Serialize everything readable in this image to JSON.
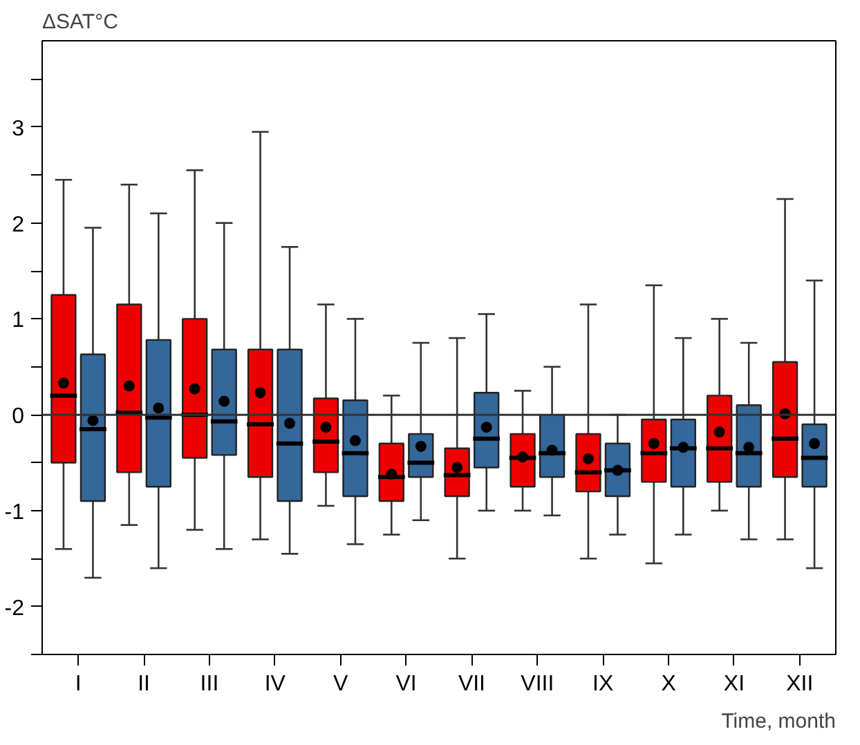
{
  "chart_data": {
    "type": "box",
    "xlabel": "Time, month",
    "ylabel": "ΔSAT°C",
    "categories": [
      "I",
      "II",
      "III",
      "IV",
      "V",
      "VI",
      "VII",
      "VIII",
      "IX",
      "X",
      "XI",
      "XII"
    ],
    "ylim": [
      -2.5,
      3.9
    ],
    "yticks": [
      {
        "value": -2.5,
        "label": null
      },
      -2,
      {
        "value": -1.5,
        "label": null
      },
      -1,
      {
        "value": -0.5,
        "label": null
      },
      0,
      {
        "value": 0.5,
        "label": null
      },
      1,
      {
        "value": 1.5,
        "label": null
      },
      2,
      {
        "value": 2.5,
        "label": null
      },
      3,
      {
        "value": 3.5,
        "label": null
      }
    ],
    "grid": false,
    "ref_lines": [
      {
        "axis": "y",
        "value": 0,
        "color": "#333333"
      }
    ],
    "series": [
      {
        "color": "#ee0000",
        "boxes": [
          {
            "low": -1.4,
            "q1": -0.5,
            "median": 0.2,
            "q3": 1.25,
            "high": 2.45,
            "mean": 0.33
          },
          {
            "low": -1.15,
            "q1": -0.6,
            "median": 0.02,
            "q3": 1.15,
            "high": 2.4,
            "mean": 0.3
          },
          {
            "low": -1.2,
            "q1": -0.45,
            "median": 0.0,
            "q3": 1.0,
            "high": 2.55,
            "mean": 0.27
          },
          {
            "low": -1.3,
            "q1": -0.65,
            "median": -0.1,
            "q3": 0.68,
            "high": 2.95,
            "mean": 0.23
          },
          {
            "low": -0.95,
            "q1": -0.6,
            "median": -0.28,
            "q3": 0.17,
            "high": 1.15,
            "mean": -0.13
          },
          {
            "low": -1.25,
            "q1": -0.9,
            "median": -0.65,
            "q3": -0.3,
            "high": 0.2,
            "mean": -0.62
          },
          {
            "low": -1.5,
            "q1": -0.85,
            "median": -0.63,
            "q3": -0.35,
            "high": 0.8,
            "mean": -0.55
          },
          {
            "low": -1.0,
            "q1": -0.75,
            "median": -0.45,
            "q3": -0.2,
            "high": 0.25,
            "mean": -0.44
          },
          {
            "low": -1.5,
            "q1": -0.8,
            "median": -0.6,
            "q3": -0.2,
            "high": 1.15,
            "mean": -0.46
          },
          {
            "low": -1.55,
            "q1": -0.7,
            "median": -0.4,
            "q3": -0.05,
            "high": 1.35,
            "mean": -0.3
          },
          {
            "low": -1.0,
            "q1": -0.7,
            "median": -0.35,
            "q3": 0.2,
            "high": 1.0,
            "mean": -0.18
          },
          {
            "low": -1.3,
            "q1": -0.65,
            "median": -0.25,
            "q3": 0.55,
            "high": 2.25,
            "mean": 0.01
          }
        ]
      },
      {
        "color": "#34679a",
        "boxes": [
          {
            "low": -1.7,
            "q1": -0.9,
            "median": -0.15,
            "q3": 0.63,
            "high": 1.95,
            "mean": -0.06
          },
          {
            "low": -1.6,
            "q1": -0.75,
            "median": -0.03,
            "q3": 0.78,
            "high": 2.1,
            "mean": 0.07
          },
          {
            "low": -1.4,
            "q1": -0.42,
            "median": -0.07,
            "q3": 0.68,
            "high": 2.0,
            "mean": 0.14
          },
          {
            "low": -1.45,
            "q1": -0.9,
            "median": -0.3,
            "q3": 0.68,
            "high": 1.75,
            "mean": -0.09
          },
          {
            "low": -1.35,
            "q1": -0.85,
            "median": -0.4,
            "q3": 0.15,
            "high": 1.0,
            "mean": -0.27
          },
          {
            "low": -1.1,
            "q1": -0.65,
            "median": -0.5,
            "q3": -0.2,
            "high": 0.75,
            "mean": -0.33
          },
          {
            "low": -1.0,
            "q1": -0.55,
            "median": -0.25,
            "q3": 0.23,
            "high": 1.05,
            "mean": -0.13
          },
          {
            "low": -1.05,
            "q1": -0.65,
            "median": -0.4,
            "q3": 0.0,
            "high": 0.5,
            "mean": -0.37
          },
          {
            "low": -1.25,
            "q1": -0.85,
            "median": -0.58,
            "q3": -0.3,
            "high": 0.0,
            "mean": -0.58
          },
          {
            "low": -1.25,
            "q1": -0.75,
            "median": -0.35,
            "q3": -0.05,
            "high": 0.8,
            "mean": -0.34
          },
          {
            "low": -1.3,
            "q1": -0.75,
            "median": -0.4,
            "q3": 0.1,
            "high": 0.75,
            "mean": -0.34
          },
          {
            "low": -1.6,
            "q1": -0.75,
            "median": -0.45,
            "q3": -0.1,
            "high": 1.4,
            "mean": -0.3
          }
        ]
      }
    ]
  }
}
